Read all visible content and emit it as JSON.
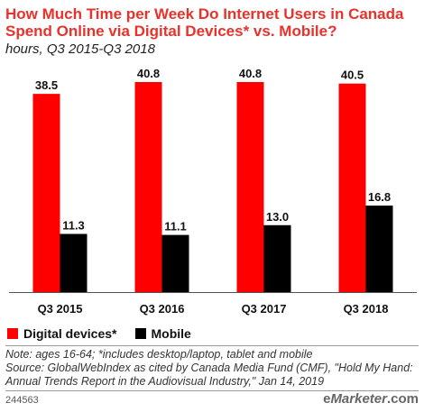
{
  "title": "How Much Time per Week Do Internet Users in Canada Spend Online via Digital Devices* vs. Mobile?",
  "subtitle": "hours, Q3 2015-Q3 2018",
  "colors": {
    "digital": "#ff0000",
    "mobile": "#000000",
    "title": "#e8322b"
  },
  "chart_data": {
    "type": "bar",
    "categories": [
      "Q3 2015",
      "Q3 2016",
      "Q3 2017",
      "Q3 2018"
    ],
    "series": [
      {
        "name": "Digital devices*",
        "values": [
          38.5,
          40.8,
          40.8,
          40.5
        ],
        "labels": [
          "38.5",
          "40.8",
          "40.8",
          "40.5"
        ],
        "color": "#ff0000"
      },
      {
        "name": "Mobile",
        "values": [
          11.3,
          11.1,
          13.0,
          16.8
        ],
        "labels": [
          "11.3",
          "11.1",
          "13.0",
          "16.8"
        ],
        "color": "#000000"
      }
    ],
    "ylim": [
      0,
      40.8
    ],
    "grid": false,
    "legend": "bottom-left"
  },
  "notes": {
    "note": "Note: ages 16-64; *includes desktop/laptop, tablet and mobile",
    "source": "Source: GlobalWebIndex as cited by Canada Media Fund (CMF), \"Hold My Hand: Annual Trends Report in the Audiovisual Industry,\" Jan 14, 2019"
  },
  "footer": {
    "id": "244563",
    "brand_prefix": "e",
    "brand_name": "Marketer",
    "brand_suffix": ".com"
  }
}
